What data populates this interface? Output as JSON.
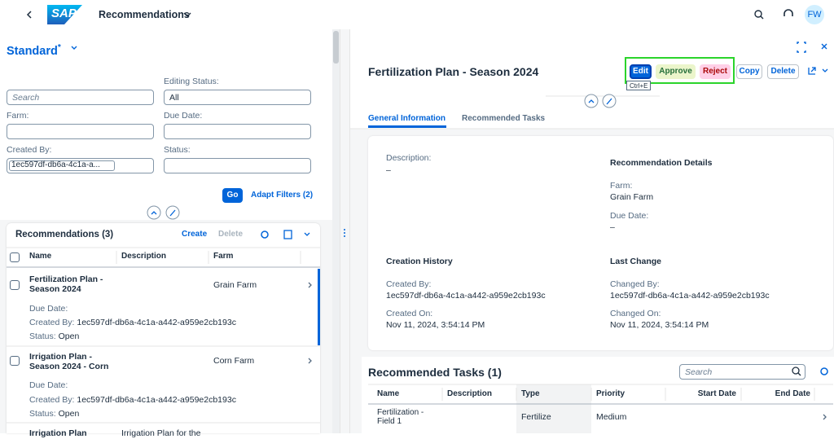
{
  "header": {
    "logo": "SAP",
    "title": "Recommendations",
    "avatar": "FW"
  },
  "filter_bar": {
    "variant": "Standard",
    "variant_modified": "*",
    "search_placeholder": "Search",
    "fields": [
      {
        "label": "Editing Status:",
        "value": "All"
      },
      {
        "label": "Farm:"
      },
      {
        "label": "Due Date:"
      },
      {
        "label": "Created By:",
        "value": "1ec597df-db6a-4c1a-a..."
      },
      {
        "label": "Status:"
      }
    ],
    "go": "Go",
    "adapt_filters": "Adapt Filters (2)"
  },
  "list": {
    "title": "Recommendations (3)",
    "actions": [
      "Create",
      "Delete"
    ],
    "columns": [
      "Name",
      "Description",
      "Farm"
    ],
    "rows": [
      {
        "name": "Fertilization Plan - Season 2024",
        "farm": "Grain Farm",
        "details": [
          {
            "label": "Due Date:"
          },
          {
            "label": "Created By:",
            "value": "1ec597df-db6a-4c1a-a442-a959e2cb193c"
          },
          {
            "label": "Status:",
            "value": "Open"
          }
        ]
      },
      {
        "name": "Irrigation Plan - Season 2024 - Corn",
        "farm": "Corn Farm",
        "details": [
          {
            "label": "Due Date:"
          },
          {
            "label": "Created By:",
            "value": "1ec597df-db6a-4c1a-a442-a959e2cb193c"
          },
          {
            "label": "Status:",
            "value": "Open"
          }
        ]
      },
      {
        "name": "Irrigation Plan",
        "description": "Irrigation Plan for the"
      }
    ]
  },
  "object": {
    "title": "Fertilization Plan - Season 2024",
    "actions": [
      "Edit",
      "Approve",
      "Reject",
      "Copy",
      "Delete"
    ],
    "tooltip": "Ctrl+E",
    "tabs": [
      "General Information",
      "Recommended Tasks"
    ],
    "general": {
      "description_label": "Description:",
      "description": "–",
      "details_title": "Recommendation Details",
      "farm_label": "Farm:",
      "farm": "Grain Farm",
      "due_label": "Due Date:",
      "due": "–",
      "creation_title": "Creation History",
      "created_by_label": "Created By:",
      "created_by": "1ec597df-db6a-4c1a-a442-a959e2cb193c",
      "created_on_label": "Created On:",
      "created_on": "Nov 11, 2024, 3:54:14 PM",
      "change_title": "Last Change",
      "changed_by_label": "Changed By:",
      "changed_by": "1ec597df-db6a-4c1a-a442-a959e2cb193c",
      "changed_on_label": "Changed On:",
      "changed_on": "Nov 11, 2024, 3:54:14 PM"
    },
    "tasks": {
      "title": "Recommended Tasks (1)",
      "search_placeholder": "Search",
      "columns": [
        "Name",
        "Description",
        "Type",
        "Priority",
        "Start Date",
        "End Date"
      ],
      "rows": [
        {
          "name": "Fertilization - Field 1",
          "type": "Fertilize",
          "priority": "Medium"
        }
      ]
    }
  }
}
